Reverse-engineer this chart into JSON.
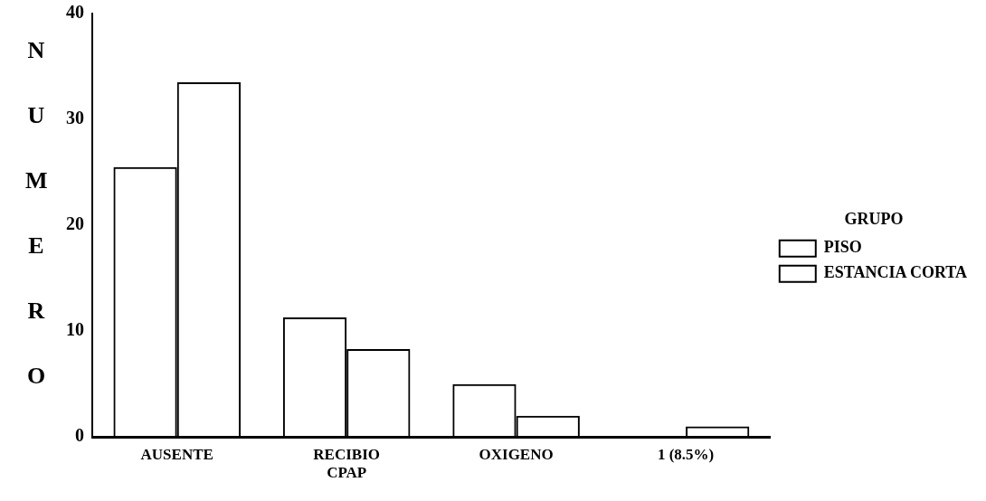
{
  "chart_data": {
    "type": "bar",
    "ylabel": "NUMERO",
    "legend_title": "GRUPO",
    "legend": "right",
    "categories": [
      "AUSENTE",
      "RECIBIO CPAP",
      "OXIGENO",
      "1 (8.5%)"
    ],
    "series": [
      {
        "name": "PISO",
        "color": "#000000",
        "values": [
          25.5,
          11.3,
          5,
          0
        ]
      },
      {
        "name": "ESTANCIA CORTA",
        "color": "#000000",
        "values": [
          33.5,
          8.3,
          2,
          1
        ]
      }
    ],
    "ylim": [
      0,
      40
    ],
    "yticks": [
      0,
      10,
      20,
      30,
      40
    ],
    "grid": false
  }
}
